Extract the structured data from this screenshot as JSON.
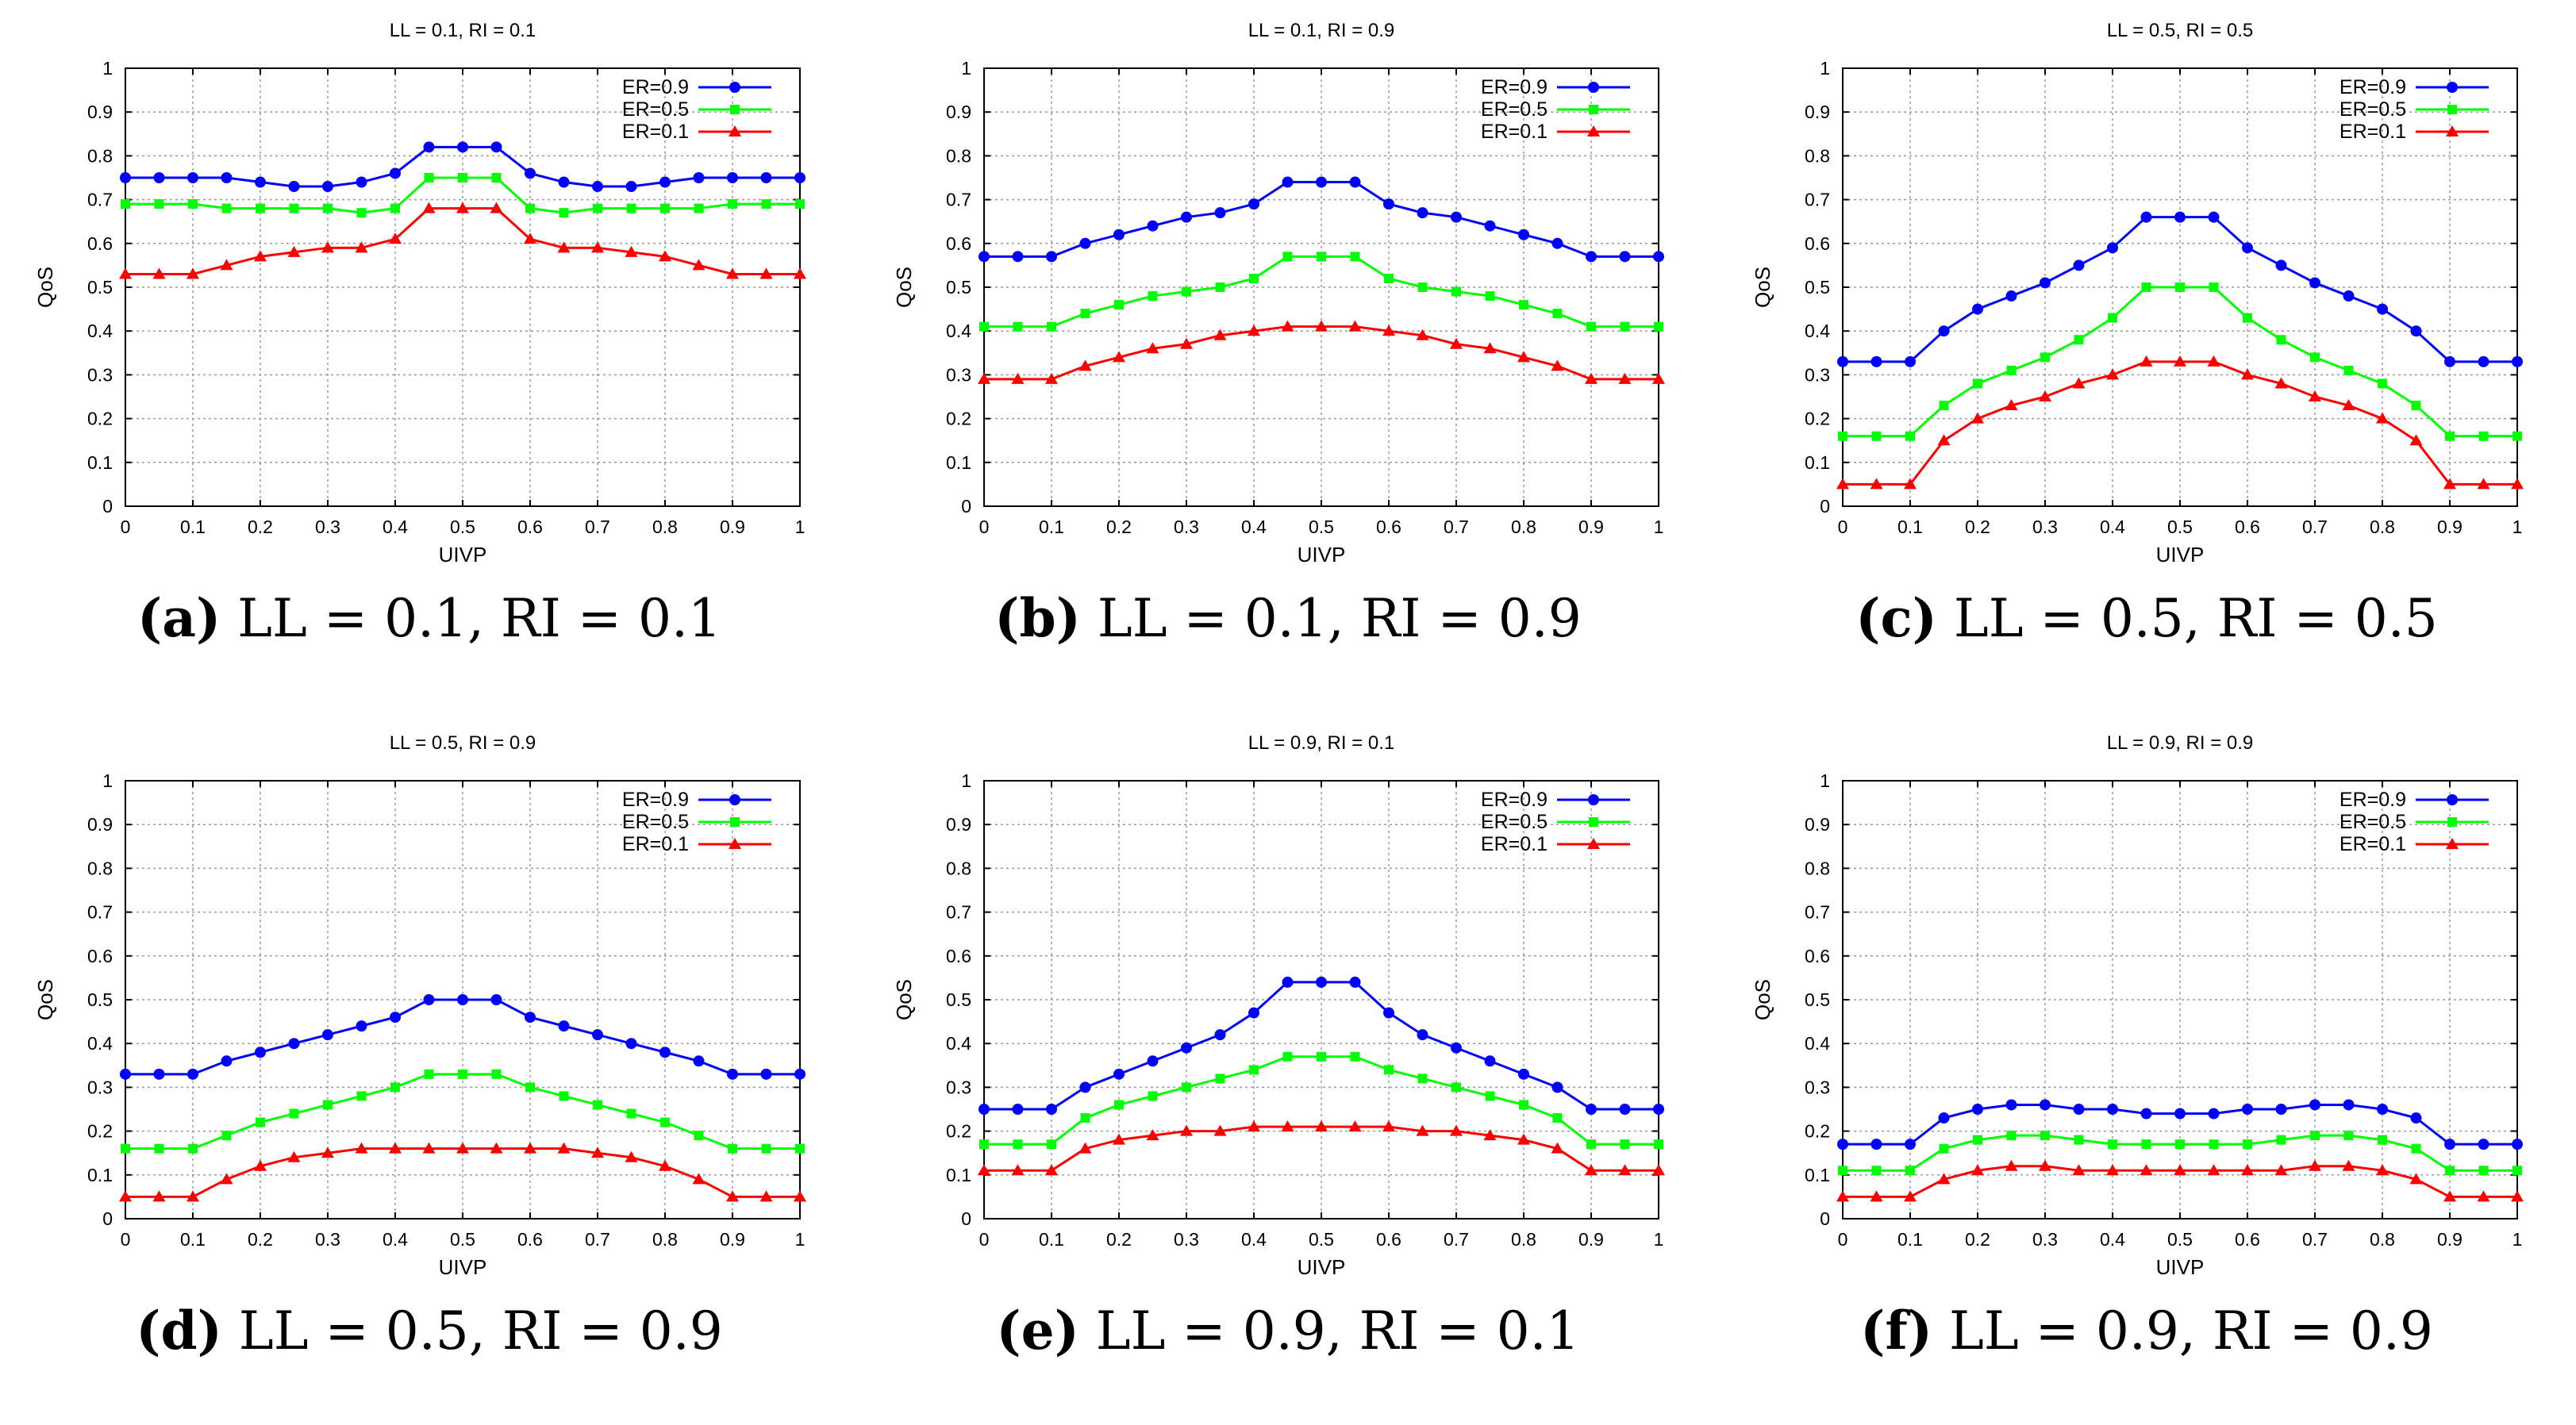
{
  "chart_data": [
    {
      "type": "line",
      "title": "LL = 0.1, RI = 0.1",
      "caption_label": "(a)",
      "caption_text": "LL = 0.1, RI = 0.1",
      "xlabel": "UIVP",
      "ylabel": "QoS",
      "xlim": [
        0,
        1
      ],
      "ylim": [
        0,
        1
      ],
      "grid": true,
      "legend": "top-right",
      "xticks": [
        "0",
        "0.1",
        "0.2",
        "0.3",
        "0.4",
        "0.5",
        "0.6",
        "0.7",
        "0.8",
        "0.9",
        "1"
      ],
      "yticks": [
        "0",
        "0.1",
        "0.2",
        "0.3",
        "0.4",
        "0.5",
        "0.6",
        "0.7",
        "0.8",
        "0.9",
        "1"
      ],
      "x": [
        0,
        0.05,
        0.1,
        0.15,
        0.2,
        0.25,
        0.3,
        0.35,
        0.4,
        0.45,
        0.5,
        0.55,
        0.6,
        0.65,
        0.7,
        0.75,
        0.8,
        0.85,
        0.9,
        0.95,
        1
      ],
      "series": [
        {
          "name": "ER=0.9",
          "color": "#0000ff",
          "marker": "circle",
          "values": [
            0.75,
            0.75,
            0.75,
            0.75,
            0.74,
            0.73,
            0.73,
            0.74,
            0.76,
            0.82,
            0.82,
            0.82,
            0.76,
            0.74,
            0.73,
            0.73,
            0.74,
            0.75,
            0.75,
            0.75,
            0.75
          ]
        },
        {
          "name": "ER=0.5",
          "color": "#00ff00",
          "marker": "square",
          "values": [
            0.69,
            0.69,
            0.69,
            0.68,
            0.68,
            0.68,
            0.68,
            0.67,
            0.68,
            0.75,
            0.75,
            0.75,
            0.68,
            0.67,
            0.68,
            0.68,
            0.68,
            0.68,
            0.69,
            0.69,
            0.69
          ]
        },
        {
          "name": "ER=0.1",
          "color": "#ff0000",
          "marker": "triangle",
          "values": [
            0.53,
            0.53,
            0.53,
            0.55,
            0.57,
            0.58,
            0.59,
            0.59,
            0.61,
            0.68,
            0.68,
            0.68,
            0.61,
            0.59,
            0.59,
            0.58,
            0.57,
            0.55,
            0.53,
            0.53,
            0.53
          ]
        }
      ]
    },
    {
      "type": "line",
      "title": "LL = 0.1, RI = 0.9",
      "caption_label": "(b)",
      "caption_text": "LL = 0.1, RI = 0.9",
      "xlabel": "UIVP",
      "ylabel": "QoS",
      "xlim": [
        0,
        1
      ],
      "ylim": [
        0,
        1
      ],
      "grid": true,
      "legend": "top-right",
      "xticks": [
        "0",
        "0.1",
        "0.2",
        "0.3",
        "0.4",
        "0.5",
        "0.6",
        "0.7",
        "0.8",
        "0.9",
        "1"
      ],
      "yticks": [
        "0",
        "0.1",
        "0.2",
        "0.3",
        "0.4",
        "0.5",
        "0.6",
        "0.7",
        "0.8",
        "0.9",
        "1"
      ],
      "x": [
        0,
        0.05,
        0.1,
        0.15,
        0.2,
        0.25,
        0.3,
        0.35,
        0.4,
        0.45,
        0.5,
        0.55,
        0.6,
        0.65,
        0.7,
        0.75,
        0.8,
        0.85,
        0.9,
        0.95,
        1
      ],
      "series": [
        {
          "name": "ER=0.9",
          "color": "#0000ff",
          "marker": "circle",
          "values": [
            0.57,
            0.57,
            0.57,
            0.6,
            0.62,
            0.64,
            0.66,
            0.67,
            0.69,
            0.74,
            0.74,
            0.74,
            0.69,
            0.67,
            0.66,
            0.64,
            0.62,
            0.6,
            0.57,
            0.57,
            0.57
          ]
        },
        {
          "name": "ER=0.5",
          "color": "#00ff00",
          "marker": "square",
          "values": [
            0.41,
            0.41,
            0.41,
            0.44,
            0.46,
            0.48,
            0.49,
            0.5,
            0.52,
            0.57,
            0.57,
            0.57,
            0.52,
            0.5,
            0.49,
            0.48,
            0.46,
            0.44,
            0.41,
            0.41,
            0.41
          ]
        },
        {
          "name": "ER=0.1",
          "color": "#ff0000",
          "marker": "triangle",
          "values": [
            0.29,
            0.29,
            0.29,
            0.32,
            0.34,
            0.36,
            0.37,
            0.39,
            0.4,
            0.41,
            0.41,
            0.41,
            0.4,
            0.39,
            0.37,
            0.36,
            0.34,
            0.32,
            0.29,
            0.29,
            0.29
          ]
        }
      ]
    },
    {
      "type": "line",
      "title": "LL = 0.5, RI = 0.5",
      "caption_label": "(c)",
      "caption_text": "LL = 0.5, RI = 0.5",
      "xlabel": "UIVP",
      "ylabel": "QoS",
      "xlim": [
        0,
        1
      ],
      "ylim": [
        0,
        1
      ],
      "grid": true,
      "legend": "top-right",
      "xticks": [
        "0",
        "0.1",
        "0.2",
        "0.3",
        "0.4",
        "0.5",
        "0.6",
        "0.7",
        "0.8",
        "0.9",
        "1"
      ],
      "yticks": [
        "0",
        "0.1",
        "0.2",
        "0.3",
        "0.4",
        "0.5",
        "0.6",
        "0.7",
        "0.8",
        "0.9",
        "1"
      ],
      "x": [
        0,
        0.05,
        0.1,
        0.15,
        0.2,
        0.25,
        0.3,
        0.35,
        0.4,
        0.45,
        0.5,
        0.55,
        0.6,
        0.65,
        0.7,
        0.75,
        0.8,
        0.85,
        0.9,
        0.95,
        1
      ],
      "series": [
        {
          "name": "ER=0.9",
          "color": "#0000ff",
          "marker": "circle",
          "values": [
            0.33,
            0.33,
            0.33,
            0.4,
            0.45,
            0.48,
            0.51,
            0.55,
            0.59,
            0.66,
            0.66,
            0.66,
            0.59,
            0.55,
            0.51,
            0.48,
            0.45,
            0.4,
            0.33,
            0.33,
            0.33
          ]
        },
        {
          "name": "ER=0.5",
          "color": "#00ff00",
          "marker": "square",
          "values": [
            0.16,
            0.16,
            0.16,
            0.23,
            0.28,
            0.31,
            0.34,
            0.38,
            0.43,
            0.5,
            0.5,
            0.5,
            0.43,
            0.38,
            0.34,
            0.31,
            0.28,
            0.23,
            0.16,
            0.16,
            0.16
          ]
        },
        {
          "name": "ER=0.1",
          "color": "#ff0000",
          "marker": "triangle",
          "values": [
            0.05,
            0.05,
            0.05,
            0.15,
            0.2,
            0.23,
            0.25,
            0.28,
            0.3,
            0.33,
            0.33,
            0.33,
            0.3,
            0.28,
            0.25,
            0.23,
            0.2,
            0.15,
            0.05,
            0.05,
            0.05
          ]
        }
      ]
    },
    {
      "type": "line",
      "title": "LL = 0.5, RI = 0.9",
      "caption_label": "(d)",
      "caption_text": "LL = 0.5, RI = 0.9",
      "xlabel": "UIVP",
      "ylabel": "QoS",
      "xlim": [
        0,
        1
      ],
      "ylim": [
        0,
        1
      ],
      "grid": true,
      "legend": "top-right",
      "xticks": [
        "0",
        "0.1",
        "0.2",
        "0.3",
        "0.4",
        "0.5",
        "0.6",
        "0.7",
        "0.8",
        "0.9",
        "1"
      ],
      "yticks": [
        "0",
        "0.1",
        "0.2",
        "0.3",
        "0.4",
        "0.5",
        "0.6",
        "0.7",
        "0.8",
        "0.9",
        "1"
      ],
      "x": [
        0,
        0.05,
        0.1,
        0.15,
        0.2,
        0.25,
        0.3,
        0.35,
        0.4,
        0.45,
        0.5,
        0.55,
        0.6,
        0.65,
        0.7,
        0.75,
        0.8,
        0.85,
        0.9,
        0.95,
        1
      ],
      "series": [
        {
          "name": "ER=0.9",
          "color": "#0000ff",
          "marker": "circle",
          "values": [
            0.33,
            0.33,
            0.33,
            0.36,
            0.38,
            0.4,
            0.42,
            0.44,
            0.46,
            0.5,
            0.5,
            0.5,
            0.46,
            0.44,
            0.42,
            0.4,
            0.38,
            0.36,
            0.33,
            0.33,
            0.33
          ]
        },
        {
          "name": "ER=0.5",
          "color": "#00ff00",
          "marker": "square",
          "values": [
            0.16,
            0.16,
            0.16,
            0.19,
            0.22,
            0.24,
            0.26,
            0.28,
            0.3,
            0.33,
            0.33,
            0.33,
            0.3,
            0.28,
            0.26,
            0.24,
            0.22,
            0.19,
            0.16,
            0.16,
            0.16
          ]
        },
        {
          "name": "ER=0.1",
          "color": "#ff0000",
          "marker": "triangle",
          "values": [
            0.05,
            0.05,
            0.05,
            0.09,
            0.12,
            0.14,
            0.15,
            0.16,
            0.16,
            0.16,
            0.16,
            0.16,
            0.16,
            0.16,
            0.15,
            0.14,
            0.12,
            0.09,
            0.05,
            0.05,
            0.05
          ]
        }
      ]
    },
    {
      "type": "line",
      "title": "LL = 0.9, RI = 0.1",
      "caption_label": "(e)",
      "caption_text": "LL = 0.9, RI = 0.1",
      "xlabel": "UIVP",
      "ylabel": "QoS",
      "xlim": [
        0,
        1
      ],
      "ylim": [
        0,
        1
      ],
      "grid": true,
      "legend": "top-right",
      "xticks": [
        "0",
        "0.1",
        "0.2",
        "0.3",
        "0.4",
        "0.5",
        "0.6",
        "0.7",
        "0.8",
        "0.9",
        "1"
      ],
      "yticks": [
        "0",
        "0.1",
        "0.2",
        "0.3",
        "0.4",
        "0.5",
        "0.6",
        "0.7",
        "0.8",
        "0.9",
        "1"
      ],
      "x": [
        0,
        0.05,
        0.1,
        0.15,
        0.2,
        0.25,
        0.3,
        0.35,
        0.4,
        0.45,
        0.5,
        0.55,
        0.6,
        0.65,
        0.7,
        0.75,
        0.8,
        0.85,
        0.9,
        0.95,
        1
      ],
      "series": [
        {
          "name": "ER=0.9",
          "color": "#0000ff",
          "marker": "circle",
          "values": [
            0.25,
            0.25,
            0.25,
            0.3,
            0.33,
            0.36,
            0.39,
            0.42,
            0.47,
            0.54,
            0.54,
            0.54,
            0.47,
            0.42,
            0.39,
            0.36,
            0.33,
            0.3,
            0.25,
            0.25,
            0.25
          ]
        },
        {
          "name": "ER=0.5",
          "color": "#00ff00",
          "marker": "square",
          "values": [
            0.17,
            0.17,
            0.17,
            0.23,
            0.26,
            0.28,
            0.3,
            0.32,
            0.34,
            0.37,
            0.37,
            0.37,
            0.34,
            0.32,
            0.3,
            0.28,
            0.26,
            0.23,
            0.17,
            0.17,
            0.17
          ]
        },
        {
          "name": "ER=0.1",
          "color": "#ff0000",
          "marker": "triangle",
          "values": [
            0.11,
            0.11,
            0.11,
            0.16,
            0.18,
            0.19,
            0.2,
            0.2,
            0.21,
            0.21,
            0.21,
            0.21,
            0.21,
            0.2,
            0.2,
            0.19,
            0.18,
            0.16,
            0.11,
            0.11,
            0.11
          ]
        }
      ]
    },
    {
      "type": "line",
      "title": "LL = 0.9, RI = 0.9",
      "caption_label": "(f)",
      "caption_text": "LL = 0.9, RI = 0.9",
      "xlabel": "UIVP",
      "ylabel": "QoS",
      "xlim": [
        0,
        1
      ],
      "ylim": [
        0,
        1
      ],
      "grid": true,
      "legend": "top-right",
      "xticks": [
        "0",
        "0.1",
        "0.2",
        "0.3",
        "0.4",
        "0.5",
        "0.6",
        "0.7",
        "0.8",
        "0.9",
        "1"
      ],
      "yticks": [
        "0",
        "0.1",
        "0.2",
        "0.3",
        "0.4",
        "0.5",
        "0.6",
        "0.7",
        "0.8",
        "0.9",
        "1"
      ],
      "x": [
        0,
        0.05,
        0.1,
        0.15,
        0.2,
        0.25,
        0.3,
        0.35,
        0.4,
        0.45,
        0.5,
        0.55,
        0.6,
        0.65,
        0.7,
        0.75,
        0.8,
        0.85,
        0.9,
        0.95,
        1
      ],
      "series": [
        {
          "name": "ER=0.9",
          "color": "#0000ff",
          "marker": "circle",
          "values": [
            0.17,
            0.17,
            0.17,
            0.23,
            0.25,
            0.26,
            0.26,
            0.25,
            0.25,
            0.24,
            0.24,
            0.24,
            0.25,
            0.25,
            0.26,
            0.26,
            0.25,
            0.23,
            0.17,
            0.17,
            0.17
          ]
        },
        {
          "name": "ER=0.5",
          "color": "#00ff00",
          "marker": "square",
          "values": [
            0.11,
            0.11,
            0.11,
            0.16,
            0.18,
            0.19,
            0.19,
            0.18,
            0.17,
            0.17,
            0.17,
            0.17,
            0.17,
            0.18,
            0.19,
            0.19,
            0.18,
            0.16,
            0.11,
            0.11,
            0.11
          ]
        },
        {
          "name": "ER=0.1",
          "color": "#ff0000",
          "marker": "triangle",
          "values": [
            0.05,
            0.05,
            0.05,
            0.09,
            0.11,
            0.12,
            0.12,
            0.11,
            0.11,
            0.11,
            0.11,
            0.11,
            0.11,
            0.11,
            0.12,
            0.12,
            0.11,
            0.09,
            0.05,
            0.05,
            0.05
          ]
        }
      ]
    }
  ]
}
